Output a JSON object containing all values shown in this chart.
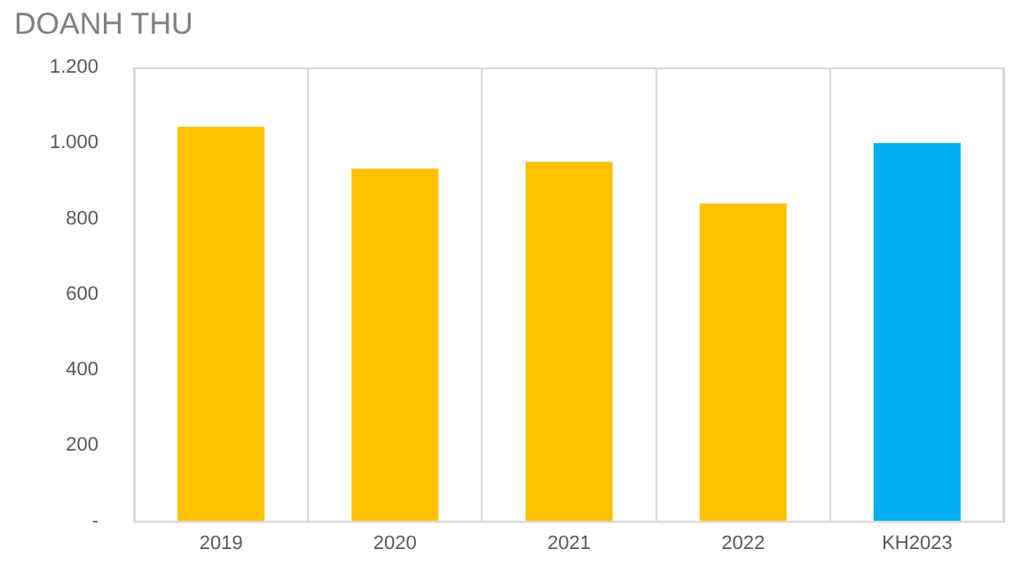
{
  "chart_data": {
    "type": "bar",
    "title": "DOANH THU",
    "categories": [
      "2019",
      "2020",
      "2021",
      "2022",
      "KH2023"
    ],
    "values": [
      1043,
      932,
      950,
      840,
      1000
    ],
    "colors": [
      "#ffc000",
      "#ffc000",
      "#ffc000",
      "#ffc000",
      "#00b0f0"
    ],
    "ylim": [
      0,
      1200
    ],
    "yticks": [
      {
        "value": 0,
        "label": "-"
      },
      200,
      400,
      600,
      800,
      {
        "value": 1000,
        "label": "1.000"
      },
      {
        "value": 1200,
        "label": "1.200"
      }
    ],
    "grid": "x"
  }
}
